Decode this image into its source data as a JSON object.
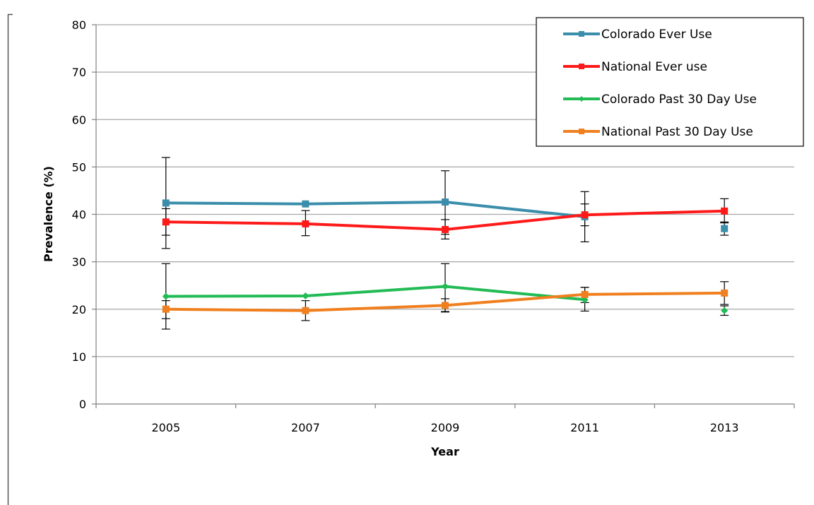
{
  "chart_data": {
    "type": "line",
    "title": "",
    "xlabel": "Year",
    "ylabel": "Prevalence (%)",
    "categories": [
      "2005",
      "2007",
      "2009",
      "2011",
      "2013"
    ],
    "ylim": [
      0,
      80
    ],
    "yticks": [
      0,
      10,
      20,
      30,
      40,
      50,
      60,
      70,
      80
    ],
    "grid": true,
    "legend_position": "top-right",
    "series": [
      {
        "name": "Colorado Ever Use",
        "color": "#3b8eab",
        "marker": "square",
        "values": [
          42.4,
          42.2,
          42.6,
          39.5,
          37.0
        ],
        "connected": [
          true,
          true,
          true,
          true,
          false
        ],
        "error_low": [
          32.8,
          null,
          35.8,
          34.2,
          35.6
        ],
        "error_high": [
          52.0,
          null,
          49.2,
          44.8,
          38.4
        ]
      },
      {
        "name": "National Ever use",
        "color": "#ff1a1a",
        "marker": "square",
        "values": [
          38.4,
          38.0,
          36.8,
          39.9,
          40.7
        ],
        "connected": [
          true,
          true,
          true,
          true,
          true
        ],
        "error_low": [
          35.6,
          35.5,
          34.8,
          37.6,
          38.2
        ],
        "error_high": [
          41.2,
          40.8,
          38.9,
          42.2,
          43.3
        ]
      },
      {
        "name": "Colorado Past 30 Day Use",
        "color": "#22bb55",
        "marker": "diamond",
        "values": [
          22.7,
          22.8,
          24.8,
          22.0,
          19.7
        ],
        "connected": [
          true,
          true,
          true,
          true,
          false
        ],
        "error_low": [
          15.8,
          null,
          19.5,
          19.6,
          18.7
        ],
        "error_high": [
          29.6,
          null,
          29.6,
          24.6,
          20.7
        ]
      },
      {
        "name": "National Past 30 Day Use",
        "color": "#f07f1f",
        "marker": "square",
        "values": [
          20.0,
          19.7,
          20.8,
          23.1,
          23.4
        ],
        "connected": [
          true,
          true,
          true,
          true,
          true
        ],
        "error_low": [
          18.0,
          17.6,
          19.4,
          21.4,
          21.0
        ],
        "error_high": [
          21.8,
          21.8,
          22.2,
          24.6,
          25.8
        ]
      }
    ]
  }
}
